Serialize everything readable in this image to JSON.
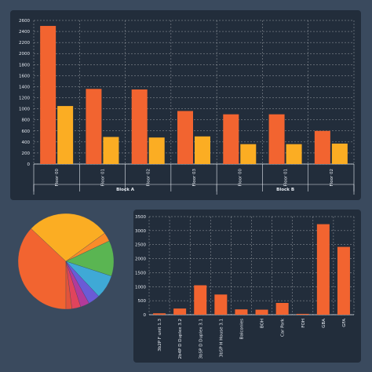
{
  "chart_data": [
    {
      "type": "bar",
      "categories": [
        "Floor 00",
        "Floor 01",
        "Floor 02",
        "Floor 03",
        "Floor 00",
        "Floor 01",
        "Floor 02"
      ],
      "groups": [
        {
          "label": "Block A",
          "span": 4
        },
        {
          "label": "Block B",
          "span": 3
        }
      ],
      "series": [
        {
          "values": [
            2500,
            1360,
            1350,
            960,
            900,
            900,
            600
          ],
          "color": "#f26430"
        },
        {
          "values": [
            1050,
            490,
            480,
            500,
            360,
            360,
            370
          ],
          "color": "#fbad23"
        }
      ],
      "yticks": [
        0,
        200,
        400,
        600,
        800,
        1000,
        1200,
        1400,
        1600,
        1800,
        2000,
        2200,
        2400,
        2600
      ],
      "ylim": [
        0,
        2600
      ],
      "grid": true
    },
    {
      "type": "pie",
      "values": [
        37,
        28,
        3,
        12,
        8,
        4,
        3,
        3,
        2
      ],
      "colors": [
        "#f26430",
        "#fbad23",
        "#f98b2a",
        "#5ab552",
        "#3fa9d6",
        "#6a5bd6",
        "#b23a9a",
        "#e0445c",
        "#e2533a"
      ]
    },
    {
      "type": "bar",
      "categories": [
        "3b2P F unit 1.3",
        "2b4P D Duplex 3.2",
        "3b5P D Duplex 3.1",
        "3b5P H House 3.1",
        "Balconies",
        "BOH",
        "Car Park",
        "FOH",
        "GBA",
        "GFA"
      ],
      "values": [
        50,
        220,
        1050,
        720,
        190,
        180,
        420,
        30,
        3230,
        2420
      ],
      "color": "#f26430",
      "yticks": [
        0,
        500,
        1000,
        1500,
        2000,
        2500,
        3000,
        3500
      ],
      "ylim": [
        0,
        3500
      ],
      "grid": true
    }
  ]
}
